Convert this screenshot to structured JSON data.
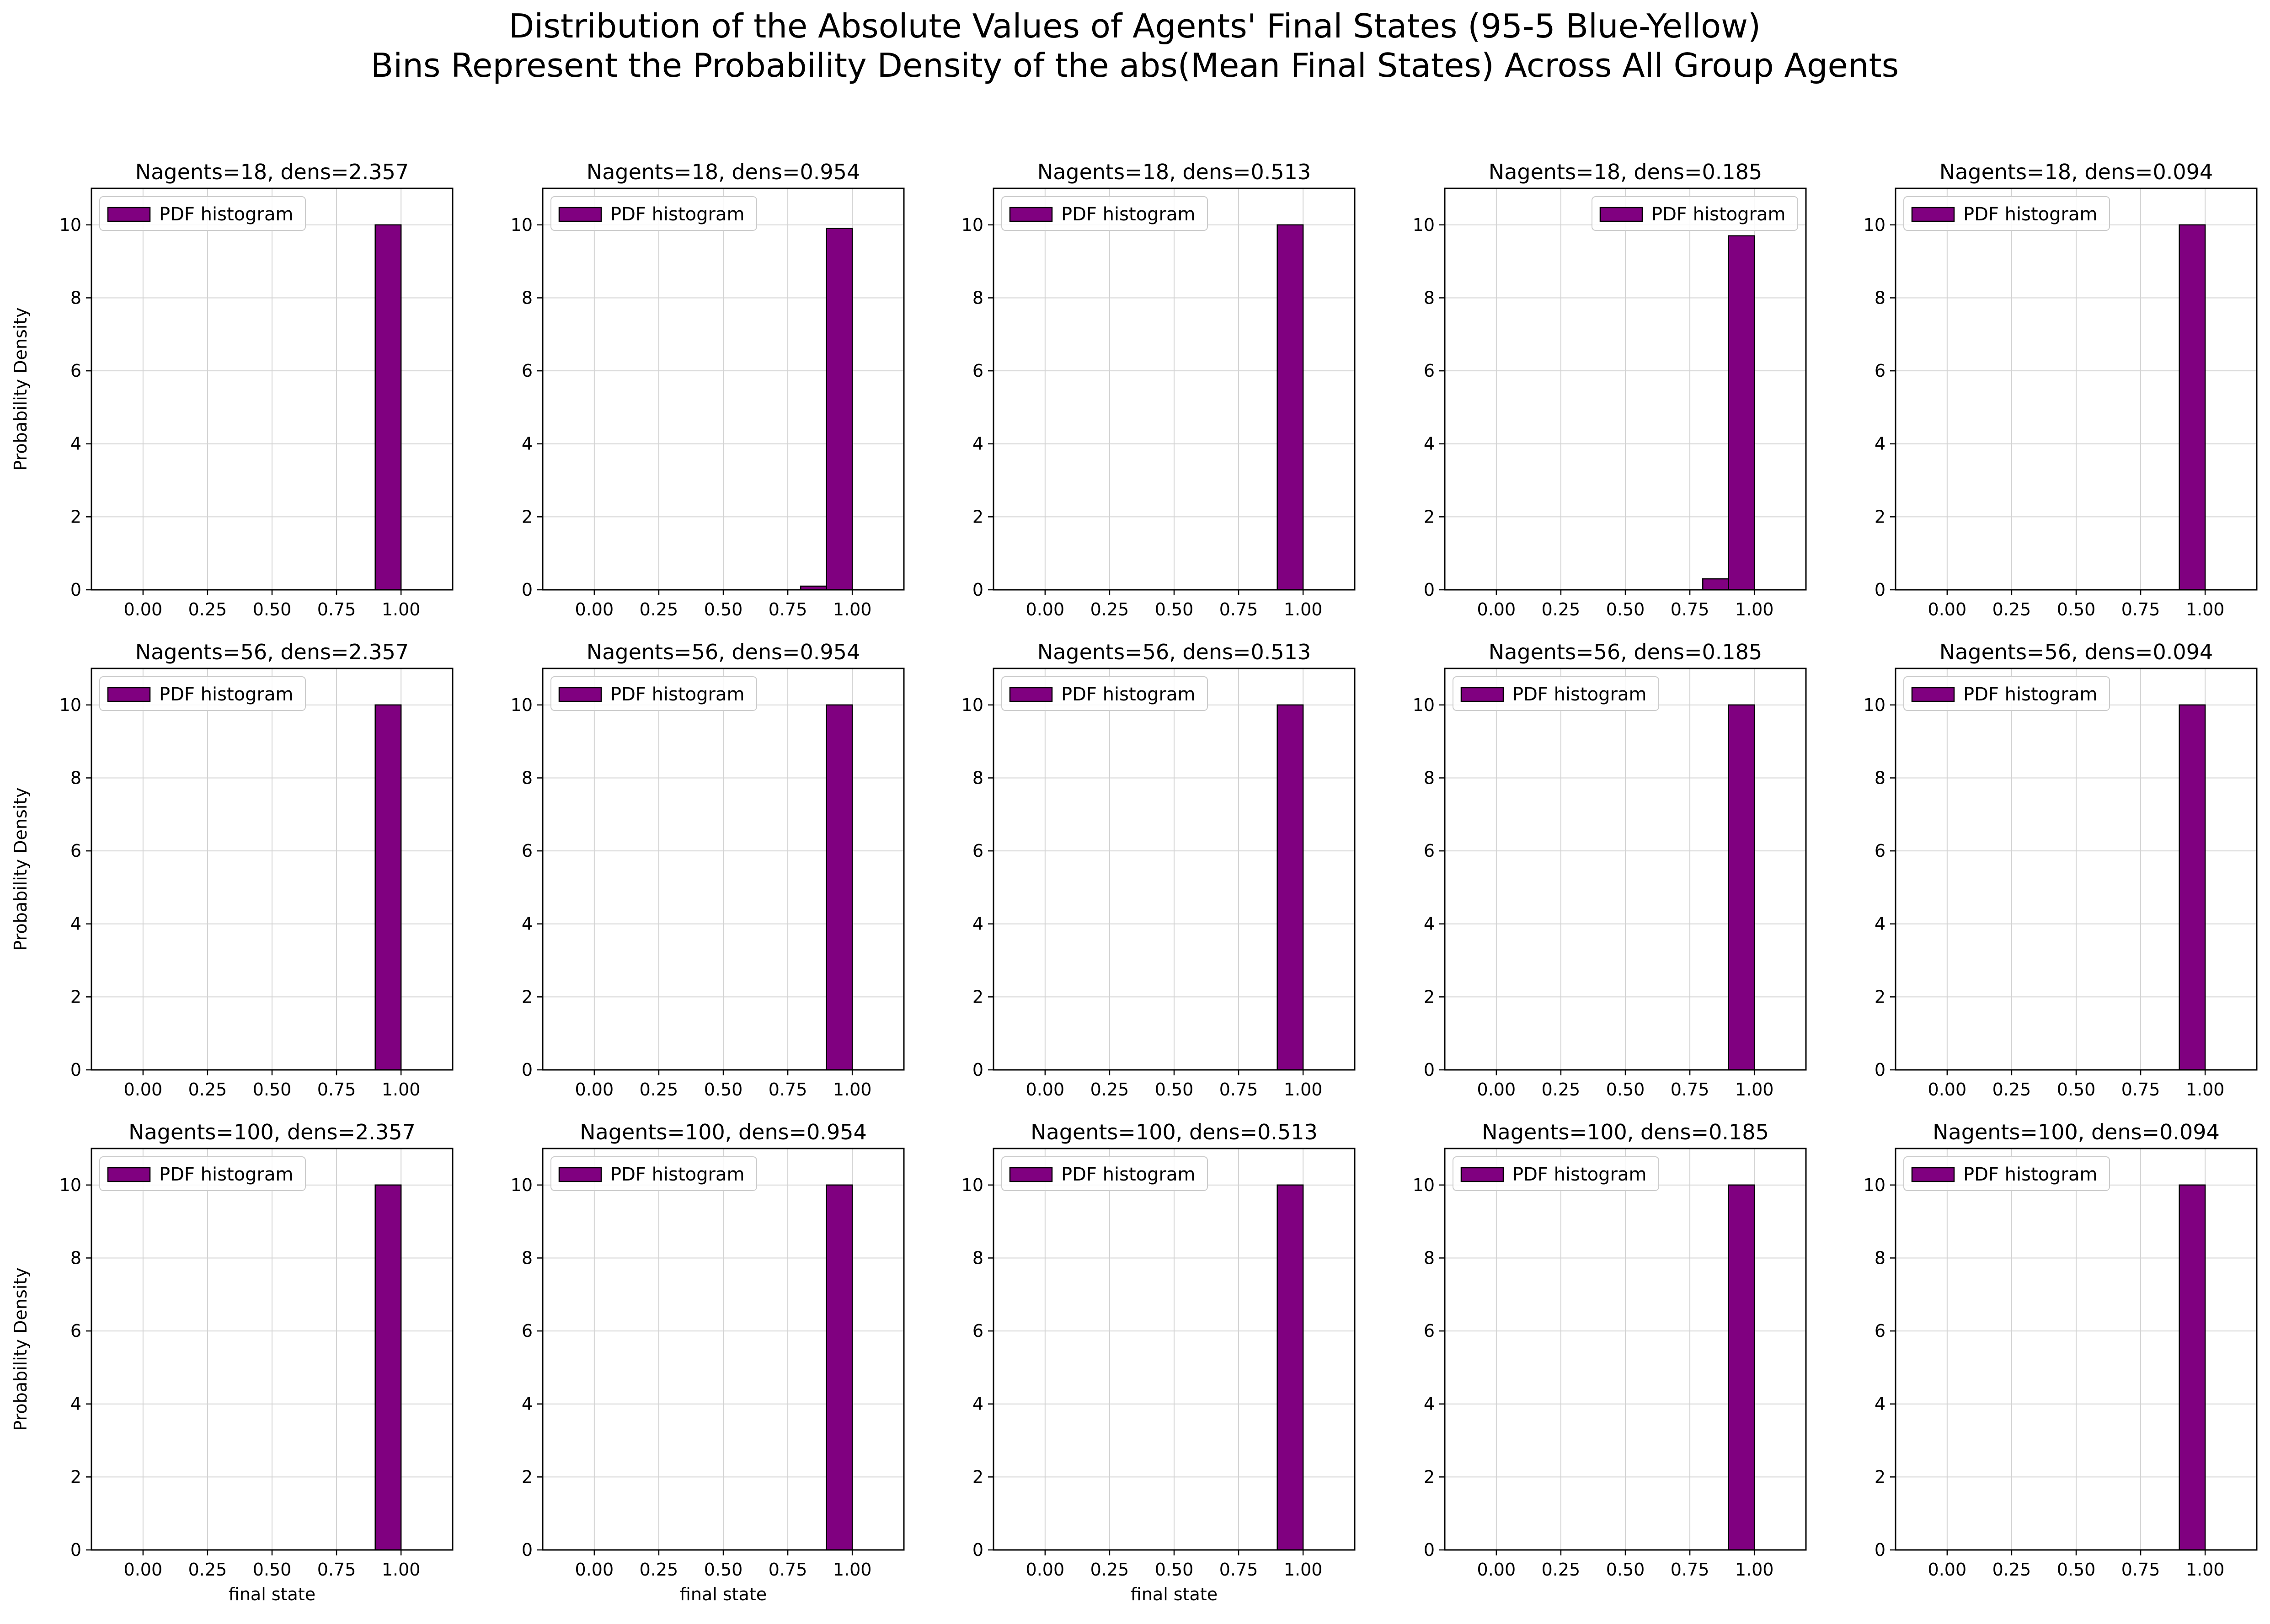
{
  "figure": {
    "title_line1": "Distribution of the Absolute Values of Agents' Final States (95-5 Blue-Yellow)",
    "title_line2": "Bins Represent the Probability Density of the abs(Mean Final States) Across All Group Agents"
  },
  "style": {
    "bar_color": "#800080",
    "edge_color": "#000000",
    "grid_color": "#d3d3d3"
  },
  "chart_data": [
    {
      "type": "bar",
      "title": "Nagents=18, dens=2.357",
      "xlabel": "",
      "ylabel": "Probability Density",
      "legend": "PDF histogram",
      "legend_loc": "upper left",
      "xlim": [
        -0.2,
        1.2
      ],
      "ylim": [
        0,
        11
      ],
      "xticks": [
        "0.00",
        "0.25",
        "0.50",
        "0.75",
        "1.00"
      ],
      "yticks": [
        "0",
        "2",
        "4",
        "6",
        "8",
        "10"
      ],
      "grid": true,
      "bins": [
        [
          0.0,
          0.0
        ],
        [
          0.1,
          0.0
        ],
        [
          0.2,
          0.0
        ],
        [
          0.3,
          0.0
        ],
        [
          0.4,
          0.0
        ],
        [
          0.5,
          0.0
        ],
        [
          0.6,
          0.0
        ],
        [
          0.7,
          0.0
        ],
        [
          0.8,
          0.0
        ],
        [
          0.9,
          10.0
        ]
      ]
    },
    {
      "type": "bar",
      "title": "Nagents=18, dens=0.954",
      "xlabel": "",
      "ylabel": "",
      "legend": "PDF histogram",
      "legend_loc": "upper left",
      "xlim": [
        -0.2,
        1.2
      ],
      "ylim": [
        0,
        11
      ],
      "xticks": [
        "0.00",
        "0.25",
        "0.50",
        "0.75",
        "1.00"
      ],
      "yticks": [
        "0",
        "2",
        "4",
        "6",
        "8",
        "10"
      ],
      "grid": true,
      "bins": [
        [
          0.0,
          0.0
        ],
        [
          0.1,
          0.0
        ],
        [
          0.2,
          0.0
        ],
        [
          0.3,
          0.0
        ],
        [
          0.4,
          0.0
        ],
        [
          0.5,
          0.0
        ],
        [
          0.6,
          0.0
        ],
        [
          0.7,
          0.0
        ],
        [
          0.8,
          0.1
        ],
        [
          0.9,
          9.9
        ]
      ]
    },
    {
      "type": "bar",
      "title": "Nagents=18, dens=0.513",
      "xlabel": "",
      "ylabel": "",
      "legend": "PDF histogram",
      "legend_loc": "upper left",
      "xlim": [
        -0.2,
        1.2
      ],
      "ylim": [
        0,
        11
      ],
      "xticks": [
        "0.00",
        "0.25",
        "0.50",
        "0.75",
        "1.00"
      ],
      "yticks": [
        "0",
        "2",
        "4",
        "6",
        "8",
        "10"
      ],
      "grid": true,
      "bins": [
        [
          0.0,
          0.0
        ],
        [
          0.1,
          0.0
        ],
        [
          0.2,
          0.0
        ],
        [
          0.3,
          0.0
        ],
        [
          0.4,
          0.0
        ],
        [
          0.5,
          0.0
        ],
        [
          0.6,
          0.0
        ],
        [
          0.7,
          0.0
        ],
        [
          0.8,
          0.0
        ],
        [
          0.9,
          10.0
        ]
      ]
    },
    {
      "type": "bar",
      "title": "Nagents=18, dens=0.185",
      "xlabel": "",
      "ylabel": "",
      "legend": "PDF histogram",
      "legend_loc": "upper right",
      "xlim": [
        -0.2,
        1.2
      ],
      "ylim": [
        0,
        11
      ],
      "xticks": [
        "0.00",
        "0.25",
        "0.50",
        "0.75",
        "1.00"
      ],
      "yticks": [
        "0",
        "2",
        "4",
        "6",
        "8",
        "10"
      ],
      "grid": true,
      "bins": [
        [
          0.0,
          0.0
        ],
        [
          0.1,
          0.0
        ],
        [
          0.2,
          0.0
        ],
        [
          0.3,
          0.0
        ],
        [
          0.4,
          0.0
        ],
        [
          0.5,
          0.0
        ],
        [
          0.6,
          0.0
        ],
        [
          0.7,
          0.0
        ],
        [
          0.8,
          0.3
        ],
        [
          0.9,
          9.7
        ]
      ]
    },
    {
      "type": "bar",
      "title": "Nagents=18, dens=0.094",
      "xlabel": "",
      "ylabel": "",
      "legend": "PDF histogram",
      "legend_loc": "upper left",
      "xlim": [
        -0.2,
        1.2
      ],
      "ylim": [
        0,
        11
      ],
      "xticks": [
        "0.00",
        "0.25",
        "0.50",
        "0.75",
        "1.00"
      ],
      "yticks": [
        "0",
        "2",
        "4",
        "6",
        "8",
        "10"
      ],
      "grid": true,
      "bins": [
        [
          0.0,
          0.0
        ],
        [
          0.1,
          0.0
        ],
        [
          0.2,
          0.0
        ],
        [
          0.3,
          0.0
        ],
        [
          0.4,
          0.0
        ],
        [
          0.5,
          0.0
        ],
        [
          0.6,
          0.0
        ],
        [
          0.7,
          0.0
        ],
        [
          0.8,
          0.0
        ],
        [
          0.9,
          10.0
        ]
      ]
    },
    {
      "type": "bar",
      "title": "Nagents=56, dens=2.357",
      "xlabel": "",
      "ylabel": "Probability Density",
      "legend": "PDF histogram",
      "legend_loc": "upper left",
      "xlim": [
        -0.2,
        1.2
      ],
      "ylim": [
        0,
        11
      ],
      "xticks": [
        "0.00",
        "0.25",
        "0.50",
        "0.75",
        "1.00"
      ],
      "yticks": [
        "0",
        "2",
        "4",
        "6",
        "8",
        "10"
      ],
      "grid": true,
      "bins": [
        [
          0.0,
          0.0
        ],
        [
          0.1,
          0.0
        ],
        [
          0.2,
          0.0
        ],
        [
          0.3,
          0.0
        ],
        [
          0.4,
          0.0
        ],
        [
          0.5,
          0.0
        ],
        [
          0.6,
          0.0
        ],
        [
          0.7,
          0.0
        ],
        [
          0.8,
          0.0
        ],
        [
          0.9,
          10.0
        ]
      ]
    },
    {
      "type": "bar",
      "title": "Nagents=56, dens=0.954",
      "xlabel": "",
      "ylabel": "",
      "legend": "PDF histogram",
      "legend_loc": "upper left",
      "xlim": [
        -0.2,
        1.2
      ],
      "ylim": [
        0,
        11
      ],
      "xticks": [
        "0.00",
        "0.25",
        "0.50",
        "0.75",
        "1.00"
      ],
      "yticks": [
        "0",
        "2",
        "4",
        "6",
        "8",
        "10"
      ],
      "grid": true,
      "bins": [
        [
          0.0,
          0.0
        ],
        [
          0.1,
          0.0
        ],
        [
          0.2,
          0.0
        ],
        [
          0.3,
          0.0
        ],
        [
          0.4,
          0.0
        ],
        [
          0.5,
          0.0
        ],
        [
          0.6,
          0.0
        ],
        [
          0.7,
          0.0
        ],
        [
          0.8,
          0.0
        ],
        [
          0.9,
          10.0
        ]
      ]
    },
    {
      "type": "bar",
      "title": "Nagents=56, dens=0.513",
      "xlabel": "",
      "ylabel": "",
      "legend": "PDF histogram",
      "legend_loc": "upper left",
      "xlim": [
        -0.2,
        1.2
      ],
      "ylim": [
        0,
        11
      ],
      "xticks": [
        "0.00",
        "0.25",
        "0.50",
        "0.75",
        "1.00"
      ],
      "yticks": [
        "0",
        "2",
        "4",
        "6",
        "8",
        "10"
      ],
      "grid": true,
      "bins": [
        [
          0.0,
          0.0
        ],
        [
          0.1,
          0.0
        ],
        [
          0.2,
          0.0
        ],
        [
          0.3,
          0.0
        ],
        [
          0.4,
          0.0
        ],
        [
          0.5,
          0.0
        ],
        [
          0.6,
          0.0
        ],
        [
          0.7,
          0.0
        ],
        [
          0.8,
          0.0
        ],
        [
          0.9,
          10.0
        ]
      ]
    },
    {
      "type": "bar",
      "title": "Nagents=56, dens=0.185",
      "xlabel": "",
      "ylabel": "",
      "legend": "PDF histogram",
      "legend_loc": "upper left",
      "xlim": [
        -0.2,
        1.2
      ],
      "ylim": [
        0,
        11
      ],
      "xticks": [
        "0.00",
        "0.25",
        "0.50",
        "0.75",
        "1.00"
      ],
      "yticks": [
        "0",
        "2",
        "4",
        "6",
        "8",
        "10"
      ],
      "grid": true,
      "bins": [
        [
          0.0,
          0.0
        ],
        [
          0.1,
          0.0
        ],
        [
          0.2,
          0.0
        ],
        [
          0.3,
          0.0
        ],
        [
          0.4,
          0.0
        ],
        [
          0.5,
          0.0
        ],
        [
          0.6,
          0.0
        ],
        [
          0.7,
          0.0
        ],
        [
          0.8,
          0.0
        ],
        [
          0.9,
          10.0
        ]
      ]
    },
    {
      "type": "bar",
      "title": "Nagents=56, dens=0.094",
      "xlabel": "",
      "ylabel": "",
      "legend": "PDF histogram",
      "legend_loc": "upper left",
      "xlim": [
        -0.2,
        1.2
      ],
      "ylim": [
        0,
        11
      ],
      "xticks": [
        "0.00",
        "0.25",
        "0.50",
        "0.75",
        "1.00"
      ],
      "yticks": [
        "0",
        "2",
        "4",
        "6",
        "8",
        "10"
      ],
      "grid": true,
      "bins": [
        [
          0.0,
          0.0
        ],
        [
          0.1,
          0.0
        ],
        [
          0.2,
          0.0
        ],
        [
          0.3,
          0.0
        ],
        [
          0.4,
          0.0
        ],
        [
          0.5,
          0.0
        ],
        [
          0.6,
          0.0
        ],
        [
          0.7,
          0.0
        ],
        [
          0.8,
          0.0
        ],
        [
          0.9,
          10.0
        ]
      ]
    },
    {
      "type": "bar",
      "title": "Nagents=100, dens=2.357",
      "xlabel": "final state",
      "ylabel": "Probability  Density",
      "legend": "PDF histogram",
      "legend_loc": "upper left",
      "xlim": [
        -0.2,
        1.2
      ],
      "ylim": [
        0,
        11
      ],
      "xticks": [
        "0.00",
        "0.25",
        "0.50",
        "0.75",
        "1.00"
      ],
      "yticks": [
        "0",
        "2",
        "4",
        "6",
        "8",
        "10"
      ],
      "grid": true,
      "bins": [
        [
          0.0,
          0.0
        ],
        [
          0.1,
          0.0
        ],
        [
          0.2,
          0.0
        ],
        [
          0.3,
          0.0
        ],
        [
          0.4,
          0.0
        ],
        [
          0.5,
          0.0
        ],
        [
          0.6,
          0.0
        ],
        [
          0.7,
          0.0
        ],
        [
          0.8,
          0.0
        ],
        [
          0.9,
          10.0
        ]
      ]
    },
    {
      "type": "bar",
      "title": "Nagents=100, dens=0.954",
      "xlabel": "final state",
      "ylabel": "",
      "legend": "PDF histogram",
      "legend_loc": "upper left",
      "xlim": [
        -0.2,
        1.2
      ],
      "ylim": [
        0,
        11
      ],
      "xticks": [
        "0.00",
        "0.25",
        "0.50",
        "0.75",
        "1.00"
      ],
      "yticks": [
        "0",
        "2",
        "4",
        "6",
        "8",
        "10"
      ],
      "grid": true,
      "bins": [
        [
          0.0,
          0.0
        ],
        [
          0.1,
          0.0
        ],
        [
          0.2,
          0.0
        ],
        [
          0.3,
          0.0
        ],
        [
          0.4,
          0.0
        ],
        [
          0.5,
          0.0
        ],
        [
          0.6,
          0.0
        ],
        [
          0.7,
          0.0
        ],
        [
          0.8,
          0.0
        ],
        [
          0.9,
          10.0
        ]
      ]
    },
    {
      "type": "bar",
      "title": "Nagents=100, dens=0.513",
      "xlabel": "final state",
      "ylabel": "",
      "legend": "PDF histogram",
      "legend_loc": "upper left",
      "xlim": [
        -0.2,
        1.2
      ],
      "ylim": [
        0,
        11
      ],
      "xticks": [
        "0.00",
        "0.25",
        "0.50",
        "0.75",
        "1.00"
      ],
      "yticks": [
        "0",
        "2",
        "4",
        "6",
        "8",
        "10"
      ],
      "grid": true,
      "bins": [
        [
          0.0,
          0.0
        ],
        [
          0.1,
          0.0
        ],
        [
          0.2,
          0.0
        ],
        [
          0.3,
          0.0
        ],
        [
          0.4,
          0.0
        ],
        [
          0.5,
          0.0
        ],
        [
          0.6,
          0.0
        ],
        [
          0.7,
          0.0
        ],
        [
          0.8,
          0.0
        ],
        [
          0.9,
          10.0
        ]
      ]
    },
    {
      "type": "bar",
      "title": "Nagents=100, dens=0.185",
      "xlabel": "",
      "ylabel": "",
      "legend": "PDF histogram",
      "legend_loc": "upper left",
      "xlim": [
        -0.2,
        1.2
      ],
      "ylim": [
        0,
        11
      ],
      "xticks": [
        "0.00",
        "0.25",
        "0.50",
        "0.75",
        "1.00"
      ],
      "yticks": [
        "0",
        "2",
        "4",
        "6",
        "8",
        "10"
      ],
      "grid": true,
      "bins": [
        [
          0.0,
          0.0
        ],
        [
          0.1,
          0.0
        ],
        [
          0.2,
          0.0
        ],
        [
          0.3,
          0.0
        ],
        [
          0.4,
          0.0
        ],
        [
          0.5,
          0.0
        ],
        [
          0.6,
          0.0
        ],
        [
          0.7,
          0.0
        ],
        [
          0.8,
          0.0
        ],
        [
          0.9,
          10.0
        ]
      ]
    },
    {
      "type": "bar",
      "title": "Nagents=100, dens=0.094",
      "xlabel": "",
      "ylabel": "",
      "legend": "PDF histogram",
      "legend_loc": "upper left",
      "xlim": [
        -0.2,
        1.2
      ],
      "ylim": [
        0,
        11
      ],
      "xticks": [
        "0.00",
        "0.25",
        "0.50",
        "0.75",
        "1.00"
      ],
      "yticks": [
        "0",
        "2",
        "4",
        "6",
        "8",
        "10"
      ],
      "grid": true,
      "bins": [
        [
          0.0,
          0.0
        ],
        [
          0.1,
          0.0
        ],
        [
          0.2,
          0.0
        ],
        [
          0.3,
          0.0
        ],
        [
          0.4,
          0.0
        ],
        [
          0.5,
          0.0
        ],
        [
          0.6,
          0.0
        ],
        [
          0.7,
          0.0
        ],
        [
          0.8,
          0.0
        ],
        [
          0.9,
          10.0
        ]
      ]
    }
  ]
}
